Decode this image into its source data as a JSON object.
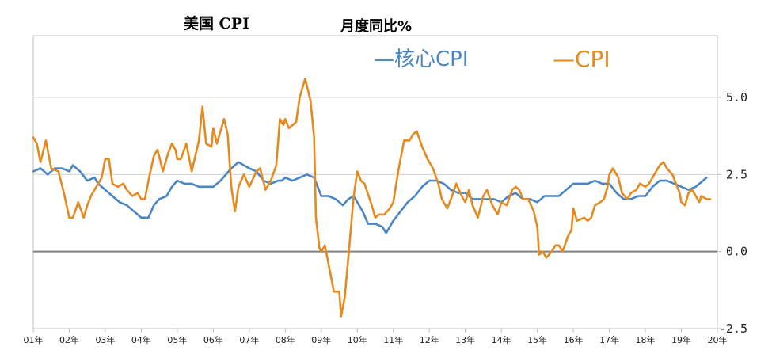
{
  "chart_data": {
    "type": "line",
    "title": "美国 CPI",
    "subtitle": "月度同比%",
    "x_tick_labels": [
      "01年",
      "02年",
      "03年",
      "04年",
      "05年",
      "06年",
      "07年",
      "08年",
      "09年",
      "10年",
      "11年",
      "12年",
      "13年",
      "14年",
      "15年",
      "16年",
      "17年",
      "18年",
      "19年",
      "20年"
    ],
    "y_tick_labels": [
      "5.0",
      "2.5",
      "0.0",
      "-2.5"
    ],
    "y_ticks": [
      5.0,
      2.5,
      0.0,
      -2.5
    ],
    "ylim": [
      -2.5,
      7.0
    ],
    "xlim": [
      2001.0,
      2020.0
    ],
    "grid": "horizontal",
    "legend": {
      "core_label": "—核心CPI",
      "cpi_label": "—CPI",
      "placement": "top-center"
    },
    "series": [
      {
        "name": "核心CPI",
        "color": "#4a86c5",
        "points": [
          [
            2001.0,
            2.6
          ],
          [
            2001.2,
            2.7
          ],
          [
            2001.4,
            2.5
          ],
          [
            2001.6,
            2.7
          ],
          [
            2001.8,
            2.7
          ],
          [
            2002.0,
            2.6
          ],
          [
            2002.1,
            2.8
          ],
          [
            2002.3,
            2.6
          ],
          [
            2002.5,
            2.3
          ],
          [
            2002.7,
            2.4
          ],
          [
            2002.8,
            2.2
          ],
          [
            2003.0,
            2.0
          ],
          [
            2003.2,
            1.8
          ],
          [
            2003.4,
            1.6
          ],
          [
            2003.6,
            1.5
          ],
          [
            2003.8,
            1.3
          ],
          [
            2003.9,
            1.2
          ],
          [
            2004.0,
            1.1
          ],
          [
            2004.2,
            1.1
          ],
          [
            2004.35,
            1.5
          ],
          [
            2004.5,
            1.7
          ],
          [
            2004.7,
            1.8
          ],
          [
            2004.85,
            2.1
          ],
          [
            2005.0,
            2.3
          ],
          [
            2005.2,
            2.2
          ],
          [
            2005.4,
            2.2
          ],
          [
            2005.6,
            2.1
          ],
          [
            2005.8,
            2.1
          ],
          [
            2006.0,
            2.1
          ],
          [
            2006.2,
            2.3
          ],
          [
            2006.5,
            2.7
          ],
          [
            2006.7,
            2.9
          ],
          [
            2006.85,
            2.8
          ],
          [
            2007.0,
            2.7
          ],
          [
            2007.2,
            2.6
          ],
          [
            2007.4,
            2.3
          ],
          [
            2007.6,
            2.2
          ],
          [
            2007.8,
            2.3
          ],
          [
            2007.9,
            2.3
          ],
          [
            2008.0,
            2.4
          ],
          [
            2008.2,
            2.3
          ],
          [
            2008.4,
            2.4
          ],
          [
            2008.6,
            2.5
          ],
          [
            2008.8,
            2.4
          ],
          [
            2009.0,
            1.8
          ],
          [
            2009.2,
            1.8
          ],
          [
            2009.4,
            1.7
          ],
          [
            2009.6,
            1.5
          ],
          [
            2009.75,
            1.7
          ],
          [
            2009.9,
            1.8
          ],
          [
            2010.0,
            1.6
          ],
          [
            2010.15,
            1.3
          ],
          [
            2010.3,
            0.9
          ],
          [
            2010.5,
            0.9
          ],
          [
            2010.7,
            0.8
          ],
          [
            2010.8,
            0.6
          ],
          [
            2011.0,
            1.0
          ],
          [
            2011.2,
            1.3
          ],
          [
            2011.4,
            1.6
          ],
          [
            2011.6,
            1.8
          ],
          [
            2011.8,
            2.1
          ],
          [
            2012.0,
            2.3
          ],
          [
            2012.2,
            2.3
          ],
          [
            2012.4,
            2.2
          ],
          [
            2012.6,
            2.0
          ],
          [
            2012.8,
            1.9
          ],
          [
            2013.0,
            1.9
          ],
          [
            2013.2,
            1.7
          ],
          [
            2013.4,
            1.7
          ],
          [
            2013.6,
            1.7
          ],
          [
            2013.8,
            1.7
          ],
          [
            2014.0,
            1.6
          ],
          [
            2014.2,
            1.8
          ],
          [
            2014.4,
            1.9
          ],
          [
            2014.6,
            1.7
          ],
          [
            2014.8,
            1.7
          ],
          [
            2015.0,
            1.6
          ],
          [
            2015.2,
            1.8
          ],
          [
            2015.4,
            1.8
          ],
          [
            2015.6,
            1.8
          ],
          [
            2015.8,
            2.0
          ],
          [
            2016.0,
            2.2
          ],
          [
            2016.2,
            2.2
          ],
          [
            2016.4,
            2.2
          ],
          [
            2016.6,
            2.3
          ],
          [
            2016.8,
            2.2
          ],
          [
            2017.0,
            2.2
          ],
          [
            2017.2,
            1.9
          ],
          [
            2017.4,
            1.7
          ],
          [
            2017.6,
            1.7
          ],
          [
            2017.8,
            1.8
          ],
          [
            2018.0,
            1.8
          ],
          [
            2018.2,
            2.1
          ],
          [
            2018.4,
            2.3
          ],
          [
            2018.6,
            2.3
          ],
          [
            2018.8,
            2.2
          ],
          [
            2019.0,
            2.1
          ],
          [
            2019.2,
            2.0
          ],
          [
            2019.4,
            2.1
          ],
          [
            2019.6,
            2.3
          ],
          [
            2019.7,
            2.4
          ]
        ]
      },
      {
        "name": "CPI",
        "color": "#e58a1f",
        "points": [
          [
            2001.0,
            3.7
          ],
          [
            2001.1,
            3.5
          ],
          [
            2001.2,
            2.9
          ],
          [
            2001.35,
            3.6
          ],
          [
            2001.5,
            2.7
          ],
          [
            2001.7,
            2.6
          ],
          [
            2001.85,
            1.9
          ],
          [
            2002.0,
            1.1
          ],
          [
            2002.1,
            1.1
          ],
          [
            2002.25,
            1.6
          ],
          [
            2002.4,
            1.1
          ],
          [
            2002.5,
            1.5
          ],
          [
            2002.6,
            1.8
          ],
          [
            2002.75,
            2.1
          ],
          [
            2002.9,
            2.4
          ],
          [
            2003.0,
            3.0
          ],
          [
            2003.1,
            3.0
          ],
          [
            2003.2,
            2.2
          ],
          [
            2003.35,
            2.1
          ],
          [
            2003.5,
            2.2
          ],
          [
            2003.6,
            2.0
          ],
          [
            2003.75,
            1.8
          ],
          [
            2003.9,
            1.9
          ],
          [
            2004.0,
            1.7
          ],
          [
            2004.1,
            1.7
          ],
          [
            2004.2,
            2.3
          ],
          [
            2004.35,
            3.1
          ],
          [
            2004.45,
            3.3
          ],
          [
            2004.6,
            2.6
          ],
          [
            2004.75,
            3.2
          ],
          [
            2004.85,
            3.5
          ],
          [
            2004.95,
            3.3
          ],
          [
            2005.0,
            3.0
          ],
          [
            2005.1,
            3.0
          ],
          [
            2005.25,
            3.5
          ],
          [
            2005.4,
            2.6
          ],
          [
            2005.6,
            3.6
          ],
          [
            2005.7,
            4.7
          ],
          [
            2005.8,
            3.5
          ],
          [
            2005.95,
            3.4
          ],
          [
            2006.0,
            4.0
          ],
          [
            2006.1,
            3.5
          ],
          [
            2006.3,
            4.3
          ],
          [
            2006.4,
            3.8
          ],
          [
            2006.5,
            2.1
          ],
          [
            2006.6,
            1.3
          ],
          [
            2006.7,
            2.1
          ],
          [
            2006.85,
            2.5
          ],
          [
            2007.0,
            2.1
          ],
          [
            2007.2,
            2.6
          ],
          [
            2007.3,
            2.7
          ],
          [
            2007.45,
            2.0
          ],
          [
            2007.6,
            2.3
          ],
          [
            2007.75,
            2.8
          ],
          [
            2007.85,
            4.3
          ],
          [
            2007.95,
            4.1
          ],
          [
            2008.0,
            4.3
          ],
          [
            2008.1,
            4.0
          ],
          [
            2008.3,
            4.2
          ],
          [
            2008.4,
            5.0
          ],
          [
            2008.55,
            5.6
          ],
          [
            2008.7,
            4.9
          ],
          [
            2008.8,
            3.7
          ],
          [
            2008.85,
            1.1
          ],
          [
            2008.95,
            0.1
          ],
          [
            2009.0,
            0.0
          ],
          [
            2009.1,
            0.2
          ],
          [
            2009.2,
            -0.4
          ],
          [
            2009.35,
            -1.3
          ],
          [
            2009.5,
            -1.3
          ],
          [
            2009.55,
            -2.1
          ],
          [
            2009.65,
            -1.5
          ],
          [
            2009.75,
            -0.2
          ],
          [
            2009.9,
            1.8
          ],
          [
            2010.0,
            2.6
          ],
          [
            2010.1,
            2.3
          ],
          [
            2010.2,
            2.2
          ],
          [
            2010.4,
            1.5
          ],
          [
            2010.5,
            1.1
          ],
          [
            2010.6,
            1.2
          ],
          [
            2010.75,
            1.2
          ],
          [
            2010.9,
            1.4
          ],
          [
            2011.0,
            1.6
          ],
          [
            2011.15,
            2.7
          ],
          [
            2011.3,
            3.6
          ],
          [
            2011.45,
            3.6
          ],
          [
            2011.55,
            3.8
          ],
          [
            2011.65,
            3.9
          ],
          [
            2011.8,
            3.4
          ],
          [
            2011.95,
            3.0
          ],
          [
            2012.0,
            2.9
          ],
          [
            2012.1,
            2.7
          ],
          [
            2012.25,
            2.2
          ],
          [
            2012.35,
            1.7
          ],
          [
            2012.5,
            1.4
          ],
          [
            2012.6,
            1.7
          ],
          [
            2012.75,
            2.2
          ],
          [
            2012.9,
            1.8
          ],
          [
            2013.0,
            1.6
          ],
          [
            2013.1,
            2.0
          ],
          [
            2013.2,
            1.5
          ],
          [
            2013.35,
            1.1
          ],
          [
            2013.5,
            1.8
          ],
          [
            2013.6,
            2.0
          ],
          [
            2013.75,
            1.5
          ],
          [
            2013.9,
            1.2
          ],
          [
            2014.0,
            1.6
          ],
          [
            2014.15,
            1.5
          ],
          [
            2014.3,
            2.0
          ],
          [
            2014.4,
            2.1
          ],
          [
            2014.5,
            2.0
          ],
          [
            2014.6,
            1.7
          ],
          [
            2014.75,
            1.7
          ],
          [
            2014.9,
            1.3
          ],
          [
            2015.0,
            0.8
          ],
          [
            2015.05,
            -0.1
          ],
          [
            2015.15,
            0.0
          ],
          [
            2015.25,
            -0.2
          ],
          [
            2015.4,
            0.0
          ],
          [
            2015.5,
            0.2
          ],
          [
            2015.6,
            0.2
          ],
          [
            2015.7,
            0.0
          ],
          [
            2015.85,
            0.5
          ],
          [
            2015.95,
            0.7
          ],
          [
            2016.0,
            1.4
          ],
          [
            2016.1,
            1.0
          ],
          [
            2016.3,
            1.1
          ],
          [
            2016.4,
            1.0
          ],
          [
            2016.5,
            1.1
          ],
          [
            2016.6,
            1.5
          ],
          [
            2016.75,
            1.6
          ],
          [
            2016.85,
            1.7
          ],
          [
            2016.95,
            2.1
          ],
          [
            2017.0,
            2.5
          ],
          [
            2017.1,
            2.7
          ],
          [
            2017.25,
            2.4
          ],
          [
            2017.35,
            1.9
          ],
          [
            2017.5,
            1.7
          ],
          [
            2017.6,
            1.9
          ],
          [
            2017.75,
            2.0
          ],
          [
            2017.85,
            2.2
          ],
          [
            2018.0,
            2.1
          ],
          [
            2018.1,
            2.2
          ],
          [
            2018.25,
            2.5
          ],
          [
            2018.4,
            2.8
          ],
          [
            2018.5,
            2.9
          ],
          [
            2018.6,
            2.7
          ],
          [
            2018.75,
            2.5
          ],
          [
            2018.85,
            2.2
          ],
          [
            2018.95,
            1.9
          ],
          [
            2019.0,
            1.6
          ],
          [
            2019.1,
            1.5
          ],
          [
            2019.2,
            1.9
          ],
          [
            2019.3,
            2.0
          ],
          [
            2019.4,
            1.8
          ],
          [
            2019.5,
            1.6
          ],
          [
            2019.55,
            1.8
          ],
          [
            2019.7,
            1.7
          ],
          [
            2019.8,
            1.7
          ]
        ]
      }
    ]
  }
}
